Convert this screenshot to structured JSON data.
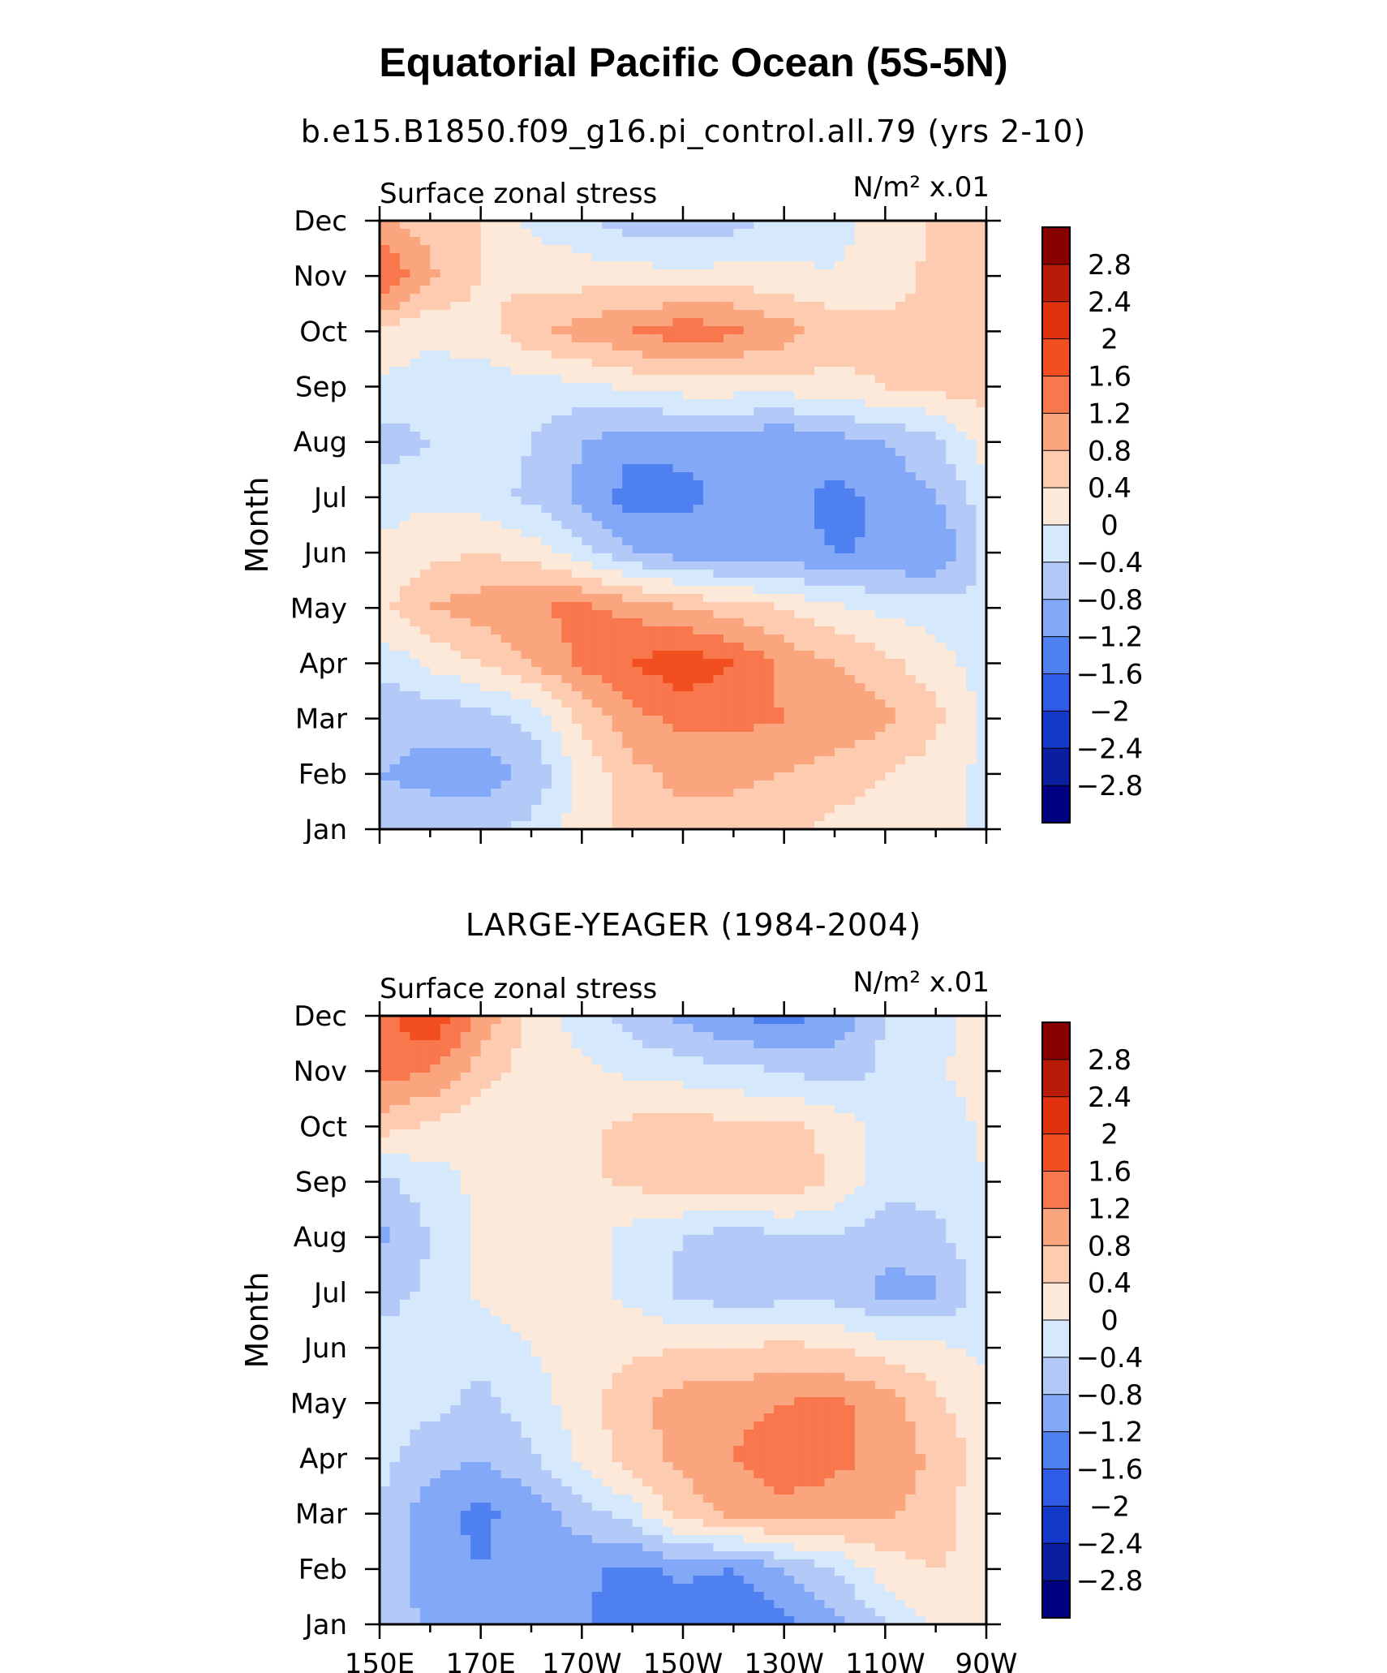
{
  "chart_data": [
    {
      "type": "heatmap",
      "title": "Equatorial Pacific Ocean (5S-5N)",
      "subtitle": "b.e15.B1850.f09_g16.pi_control.all.79 (yrs 2-10)",
      "left_label": "Surface zonal stress",
      "right_label": "N/m² x.01",
      "ylabel": "Month",
      "x_ticklabels": [
        "150E",
        "170E",
        "170W",
        "150W",
        "130W",
        "110W",
        "90W"
      ],
      "y_ticklabels": [
        "Jan",
        "Feb",
        "Mar",
        "Apr",
        "May",
        "Jun",
        "Jul",
        "Aug",
        "Sep",
        "Oct",
        "Nov",
        "Dec"
      ],
      "xlim_deg_east": [
        150,
        270
      ],
      "colorbar_levels": [
        "2.8",
        "2.4",
        "2",
        "1.6",
        "1.2",
        "0.8",
        "0.4",
        "0",
        "-0.4",
        "-0.8",
        "-1.2",
        "-1.6",
        "-2",
        "-2.4",
        "-2.8"
      ],
      "longitudes": [
        150,
        160,
        170,
        180,
        190,
        200,
        210,
        220,
        230,
        240,
        250,
        260,
        270
      ],
      "values": [
        [
          -0.7,
          -0.6,
          -0.5,
          -0.3,
          0.2,
          0.5,
          0.7,
          0.6,
          0.5,
          0.3,
          0.2,
          0.1,
          -0.1
        ],
        [
          -0.8,
          -0.9,
          -1.0,
          -0.7,
          0.1,
          0.7,
          0.9,
          0.9,
          0.8,
          0.6,
          0.4,
          0.2,
          -0.1
        ],
        [
          -0.7,
          -0.7,
          -0.6,
          -0.3,
          0.5,
          1.1,
          1.3,
          1.3,
          1.2,
          1.1,
          0.9,
          0.5,
          -0.1
        ],
        [
          -0.3,
          0.1,
          0.4,
          0.8,
          1.3,
          1.6,
          1.9,
          1.6,
          1.1,
          0.8,
          0.5,
          0.2,
          -0.2
        ],
        [
          0.3,
          0.8,
          1.0,
          1.2,
          1.3,
          1.1,
          0.8,
          0.6,
          0.4,
          0.1,
          -0.1,
          -0.2,
          -0.3
        ],
        [
          0.1,
          0.3,
          0.4,
          0.2,
          -0.2,
          -0.8,
          -1.0,
          -1.1,
          -1.1,
          -1.2,
          -1.2,
          -1.2,
          -0.3
        ],
        [
          -0.2,
          -0.1,
          -0.2,
          -0.5,
          -0.9,
          -1.4,
          -1.3,
          -1.1,
          -1.1,
          -1.3,
          -1.1,
          -0.8,
          -0.2
        ],
        [
          -0.6,
          -0.4,
          -0.2,
          -0.4,
          -0.8,
          -1.1,
          -1.1,
          -1.1,
          -1.2,
          -1.0,
          -0.8,
          -0.5,
          0.2
        ],
        [
          -0.1,
          -0.2,
          -0.2,
          -0.2,
          -0.1,
          0.1,
          0.2,
          0.2,
          0.2,
          0.3,
          0.4,
          0.5,
          0.6
        ],
        [
          0.3,
          0.1,
          0.2,
          0.7,
          1.0,
          1.2,
          1.5,
          1.3,
          1.0,
          0.6,
          0.5,
          0.5,
          0.6
        ],
        [
          1.7,
          0.9,
          0.4,
          0.3,
          0.2,
          0.2,
          0.1,
          0.2,
          0.1,
          0.0,
          0.2,
          0.5,
          0.7
        ],
        [
          0.9,
          0.6,
          0.4,
          -0.1,
          -0.3,
          -0.6,
          -0.7,
          -0.6,
          -0.2,
          -0.1,
          0.1,
          0.5,
          0.6
        ]
      ]
    },
    {
      "type": "heatmap",
      "subtitle": "LARGE-YEAGER (1984-2004)",
      "left_label": "Surface zonal stress",
      "right_label": "N/m² x.01",
      "ylabel": "Month",
      "x_ticklabels": [
        "150E",
        "170E",
        "170W",
        "150W",
        "130W",
        "110W",
        "90W"
      ],
      "y_ticklabels": [
        "Jan",
        "Feb",
        "Mar",
        "Apr",
        "May",
        "Jun",
        "Jul",
        "Aug",
        "Sep",
        "Oct",
        "Nov",
        "Dec"
      ],
      "xlim_deg_east": [
        150,
        270
      ],
      "colorbar_levels": [
        "2.8",
        "2.4",
        "2",
        "1.6",
        "1.2",
        "0.8",
        "0.4",
        "0",
        "-0.4",
        "-0.8",
        "-1.2",
        "-1.6",
        "-2",
        "-2.4",
        "-2.8"
      ],
      "longitudes": [
        150,
        160,
        170,
        180,
        190,
        200,
        210,
        220,
        230,
        240,
        250,
        260,
        270
      ],
      "values": [
        [
          -0.5,
          -0.9,
          -1.0,
          -0.8,
          -1.1,
          -1.6,
          -1.5,
          -1.6,
          -1.3,
          -0.9,
          -0.4,
          0.1,
          0.2
        ],
        [
          -0.5,
          -1.0,
          -1.2,
          -1.0,
          -1.1,
          -1.3,
          -1.1,
          -1.2,
          -0.8,
          -0.4,
          0.2,
          0.4,
          0.3
        ],
        [
          -0.4,
          -1.1,
          -1.3,
          -1.0,
          -0.6,
          -0.2,
          0.6,
          0.9,
          1.1,
          1.0,
          0.9,
          0.6,
          0.1
        ],
        [
          -0.3,
          -0.6,
          -0.8,
          -0.5,
          0.1,
          0.6,
          0.9,
          1.2,
          1.4,
          1.3,
          1.1,
          0.7,
          0.2
        ],
        [
          -0.2,
          -0.3,
          -0.5,
          -0.2,
          0.2,
          0.7,
          1.0,
          1.1,
          1.2,
          1.3,
          1.0,
          0.5,
          0.1
        ],
        [
          -0.2,
          -0.2,
          -0.3,
          0.0,
          0.2,
          0.3,
          0.4,
          0.4,
          0.5,
          0.4,
          0.2,
          0.1,
          -0.1
        ],
        [
          -0.6,
          -0.3,
          0.1,
          0.3,
          0.1,
          -0.1,
          -0.5,
          -0.7,
          -0.6,
          -0.6,
          -0.9,
          -0.9,
          -0.2
        ],
        [
          -0.9,
          -0.4,
          0.1,
          0.3,
          0.2,
          -0.2,
          -0.4,
          -0.6,
          -0.5,
          -0.4,
          -0.7,
          -0.5,
          -0.1
        ],
        [
          -0.5,
          -0.2,
          0.1,
          0.2,
          0.3,
          0.5,
          0.6,
          0.6,
          0.8,
          0.3,
          -0.2,
          -0.3,
          0.0
        ],
        [
          0.6,
          0.3,
          0.1,
          0.2,
          0.3,
          0.5,
          0.6,
          0.5,
          0.5,
          0.3,
          -0.2,
          -0.3,
          0.1
        ],
        [
          1.4,
          1.2,
          0.6,
          0.2,
          0.1,
          -0.1,
          -0.2,
          -0.3,
          -0.4,
          -0.6,
          -0.3,
          -0.1,
          0.3
        ],
        [
          1.4,
          2.0,
          1.1,
          0.3,
          -0.2,
          -0.6,
          -0.9,
          -1.2,
          -1.4,
          -1.1,
          -0.4,
          -0.1,
          0.1
        ]
      ]
    }
  ],
  "colors": {
    "c_m2.8": "#000080",
    "c_m2.4": "#0a1ea0",
    "c_m2.0": "#1438c8",
    "c_m1.6": "#2e5ce6",
    "c_m1.2": "#4f80f0",
    "c_m0.8": "#83a8f7",
    "c_m0.4": "#b3caf9",
    "c_m0.0": "#d6e8fb",
    "c_p0.0": "#fde9d9",
    "c_p0.4": "#fccbb0",
    "c_p0.8": "#fba57f",
    "c_p1.2": "#f8774c",
    "c_p1.6": "#f24f21",
    "c_p2.0": "#e0320e",
    "c_p2.4": "#b81c08",
    "c_p2.8": "#860000"
  }
}
